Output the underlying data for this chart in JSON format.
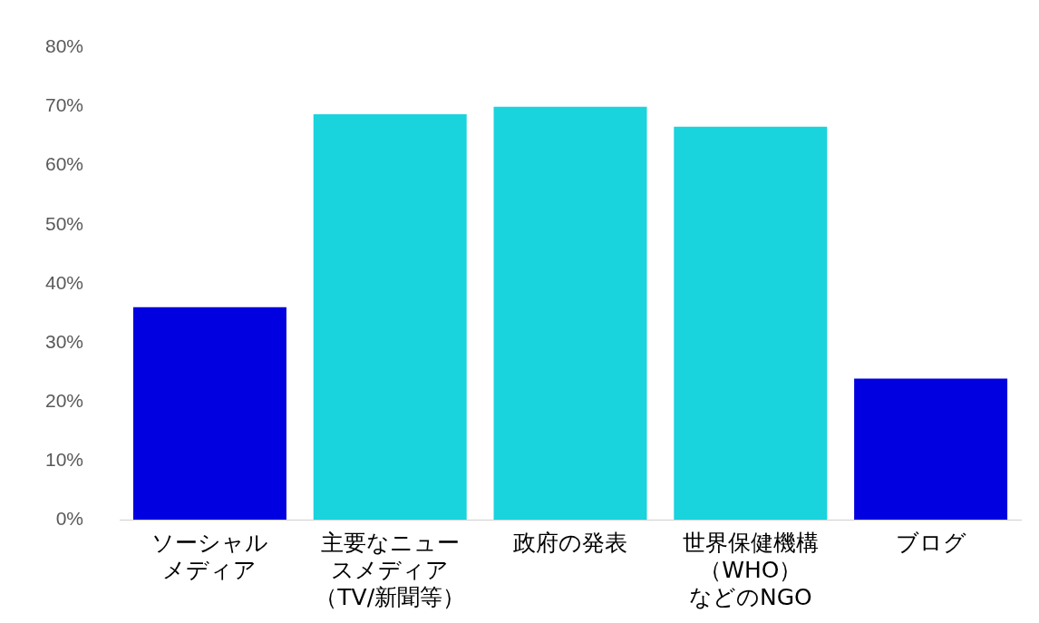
{
  "chart_data": {
    "type": "bar",
    "categories": [
      "ソーシャルメディア",
      "主要なニュースメディア（TV/新聞等）",
      "政府の発表",
      "世界保健機構（WHO）などのNGO",
      "ブログ"
    ],
    "values": [
      36,
      68.7,
      70,
      66.6,
      23.9
    ],
    "colors": [
      "#0000e0",
      "#19d3dd",
      "#19d3dd",
      "#19d3dd",
      "#0000e0"
    ],
    "ylim": [
      0,
      80
    ],
    "yticks": [
      {
        "value": 0,
        "label": "0%"
      },
      {
        "value": 10,
        "label": "10%"
      },
      {
        "value": 20,
        "label": "20%"
      },
      {
        "value": 30,
        "label": "30%"
      },
      {
        "value": 40,
        "label": "40%"
      },
      {
        "value": 50,
        "label": "50%"
      },
      {
        "value": 60,
        "label": "60%"
      },
      {
        "value": 70,
        "label": "70%"
      },
      {
        "value": 80,
        "label": "80%"
      }
    ],
    "grid": false,
    "legend": false
  }
}
